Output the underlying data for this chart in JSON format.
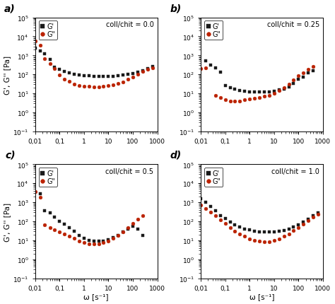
{
  "panels": [
    {
      "label": "a)",
      "title": "coll/chit = 0.0",
      "G_prime": {
        "omega": [
          0.01,
          0.016,
          0.025,
          0.04,
          0.063,
          0.1,
          0.16,
          0.25,
          0.4,
          0.63,
          1.0,
          1.6,
          2.5,
          4.0,
          6.3,
          10,
          16,
          25,
          40,
          63,
          100,
          160,
          250,
          400,
          630
        ],
        "values": [
          2500,
          1800,
          1200,
          600,
          250,
          180,
          140,
          120,
          105,
          95,
          88,
          83,
          80,
          78,
          78,
          80,
          82,
          85,
          90,
          100,
          115,
          135,
          160,
          210,
          270
        ]
      },
      "G_dprime": {
        "omega": [
          0.01,
          0.016,
          0.025,
          0.04,
          0.063,
          0.1,
          0.16,
          0.25,
          0.4,
          0.63,
          1.0,
          1.6,
          2.5,
          4.0,
          6.3,
          10,
          16,
          25,
          40,
          63,
          100,
          160,
          250,
          400,
          630
        ],
        "values": [
          5500,
          3500,
          700,
          380,
          200,
          95,
          58,
          42,
          32,
          27,
          24,
          23,
          22,
          22,
          23,
          25,
          28,
          33,
          40,
          55,
          75,
          105,
          145,
          185,
          215
        ]
      },
      "ylim": [
        0.1,
        100000
      ],
      "xlim": [
        0.01,
        1000
      ]
    },
    {
      "label": "b)",
      "title": "coll/chit = 0.25",
      "G_prime": {
        "omega": [
          0.016,
          0.025,
          0.04,
          0.063,
          0.1,
          0.16,
          0.25,
          0.4,
          0.63,
          1.0,
          1.6,
          2.5,
          4.0,
          6.3,
          10,
          16,
          25,
          40,
          63,
          100,
          160,
          250,
          400
        ],
        "values": [
          500,
          300,
          220,
          130,
          25,
          20,
          17,
          14,
          13,
          12,
          12,
          12,
          12,
          12,
          13,
          15,
          17,
          22,
          35,
          55,
          75,
          120,
          160
        ]
      },
      "G_dprime": {
        "omega": [
          0.01,
          0.016,
          0.04,
          0.063,
          0.1,
          0.16,
          0.25,
          0.4,
          0.63,
          1.0,
          1.6,
          2.5,
          4.0,
          6.3,
          10,
          16,
          25,
          40,
          63,
          100,
          160,
          250,
          400
        ],
        "values": [
          200,
          230,
          8,
          6,
          4.5,
          4,
          4,
          4,
          4.5,
          5,
          5.5,
          6,
          7,
          8,
          10,
          14,
          20,
          30,
          52,
          85,
          125,
          190,
          260
        ]
      },
      "ylim": [
        0.1,
        100000
      ],
      "xlim": [
        0.01,
        1000
      ]
    },
    {
      "label": "c)",
      "title": "coll/chit = 0.5",
      "G_prime": {
        "omega": [
          0.016,
          0.025,
          0.04,
          0.063,
          0.1,
          0.16,
          0.25,
          0.4,
          0.63,
          1.0,
          1.6,
          2.5,
          4.0,
          6.3,
          10,
          16,
          25,
          40,
          63,
          100,
          160,
          250
        ],
        "values": [
          2800,
          350,
          270,
          160,
          100,
          72,
          45,
          30,
          18,
          13,
          10,
          9,
          9,
          9,
          11,
          14,
          18,
          28,
          38,
          55,
          38,
          18
        ]
      },
      "G_dprime": {
        "omega": [
          0.01,
          0.016,
          0.025,
          0.04,
          0.063,
          0.1,
          0.16,
          0.25,
          0.4,
          0.63,
          1.0,
          1.6,
          2.5,
          4.0,
          6.3,
          10,
          16,
          25,
          40,
          63,
          100,
          160,
          250
        ],
        "values": [
          3500,
          1800,
          65,
          45,
          35,
          28,
          22,
          17,
          13,
          9,
          7.5,
          6.5,
          6.5,
          6.5,
          7.5,
          9,
          13,
          18,
          28,
          48,
          80,
          130,
          200
        ]
      },
      "ylim": [
        0.1,
        100000
      ],
      "xlim": [
        0.01,
        1000
      ]
    },
    {
      "label": "d)",
      "title": "coll/chit = 1.0",
      "G_prime": {
        "omega": [
          0.01,
          0.016,
          0.025,
          0.04,
          0.063,
          0.1,
          0.16,
          0.25,
          0.4,
          0.63,
          1.0,
          1.6,
          2.5,
          4.0,
          6.3,
          10,
          16,
          25,
          40,
          63,
          100,
          160,
          250,
          400,
          630
        ],
        "values": [
          1500,
          1000,
          600,
          350,
          200,
          140,
          90,
          65,
          50,
          40,
          35,
          30,
          28,
          27,
          27,
          28,
          30,
          34,
          40,
          50,
          65,
          90,
          130,
          190,
          270
        ]
      },
      "G_dprime": {
        "omega": [
          0.01,
          0.016,
          0.025,
          0.04,
          0.063,
          0.1,
          0.16,
          0.25,
          0.4,
          0.63,
          1.0,
          1.6,
          2.5,
          4.0,
          6.3,
          10,
          16,
          25,
          40,
          63,
          100,
          160,
          250,
          400,
          630
        ],
        "values": [
          700,
          450,
          300,
          200,
          120,
          75,
          45,
          30,
          22,
          16,
          12,
          10,
          9,
          8.5,
          8.5,
          9.5,
          12,
          16,
          22,
          32,
          48,
          72,
          110,
          160,
          230
        ]
      },
      "ylim": [
        0.1,
        100000
      ],
      "xlim": [
        0.01,
        1000
      ]
    }
  ],
  "colors": {
    "G_prime": "#1a1a1a",
    "G_dprime": "#bb2200"
  },
  "marker_size": 3.5,
  "ylabel_left": "G', G'' [Pa]",
  "ylabel_right": "G', G'' [Pa]",
  "xlabel": "ω [s⁻¹]"
}
